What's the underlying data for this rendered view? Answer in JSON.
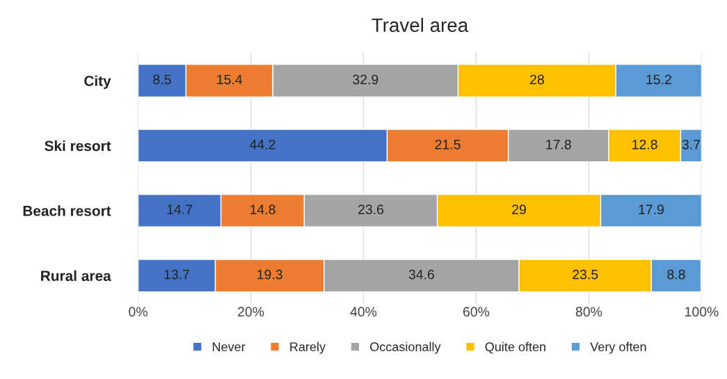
{
  "chart_data": {
    "type": "bar",
    "title": "Travel area",
    "orientation": "horizontal",
    "stacked": true,
    "categories": [
      "City",
      "Ski resort",
      "Beach resort",
      "Rural area"
    ],
    "series": [
      {
        "name": "Never",
        "color": "#4472c4",
        "values": [
          8.5,
          44.2,
          14.7,
          13.7
        ]
      },
      {
        "name": "Rarely",
        "color": "#ed7d31",
        "values": [
          15.4,
          21.5,
          14.8,
          19.3
        ]
      },
      {
        "name": "Occasionally",
        "color": "#a5a5a5",
        "values": [
          32.9,
          17.8,
          23.6,
          34.6
        ]
      },
      {
        "name": "Quite often",
        "color": "#ffc000",
        "values": [
          28,
          12.8,
          29,
          23.5
        ]
      },
      {
        "name": "Very often",
        "color": "#5b9bd5",
        "values": [
          15.2,
          3.7,
          17.9,
          8.8
        ]
      }
    ],
    "xlim": [
      0,
      100
    ],
    "xticks": [
      {
        "value": 0,
        "label": "0%"
      },
      {
        "value": 20,
        "label": "20%"
      },
      {
        "value": 40,
        "label": "40%"
      },
      {
        "value": 60,
        "label": "60%"
      },
      {
        "value": 80,
        "label": "80%"
      },
      {
        "value": 100,
        "label": "100%"
      }
    ],
    "grid": "x",
    "legend": "bottom",
    "data_labels": true
  }
}
